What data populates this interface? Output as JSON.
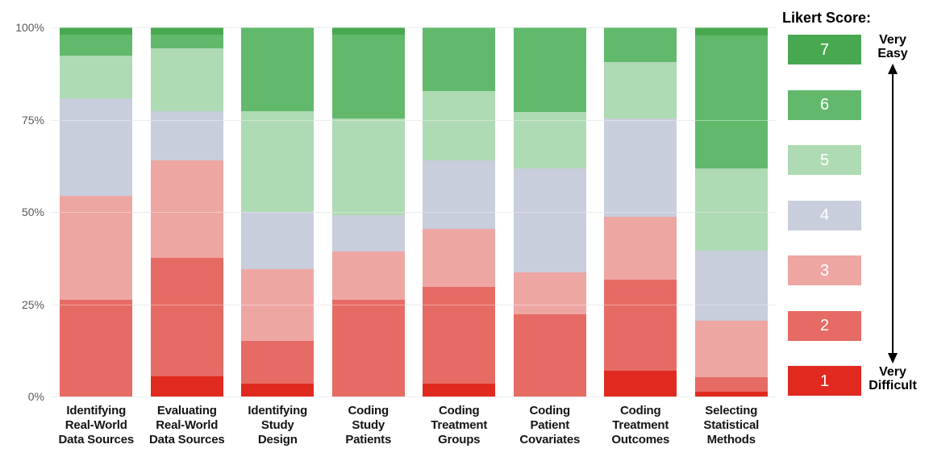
{
  "legend": {
    "title": "Likert Score:",
    "top_label_lines": [
      "Very",
      "Easy"
    ],
    "bottom_label_lines": [
      "Very",
      "Difficult"
    ]
  },
  "chart_data": {
    "type": "bar",
    "stacked": true,
    "unit": "percent of respondents",
    "orientation": "vertical",
    "grid": true,
    "legend_position": "right",
    "ylim": [
      0,
      100
    ],
    "yticks": [
      0,
      25,
      50,
      75,
      100
    ],
    "ytick_labels": [
      "0%",
      "25%",
      "50%",
      "75%",
      "100%"
    ],
    "categories": [
      "Identifying Real-World Data Sources",
      "Evaluating Real-World Data Sources",
      "Identifying Study Design",
      "Coding Study Patients",
      "Coding Treatment Groups",
      "Coding Patient Covariates",
      "Coding Treatment Outcomes",
      "Selecting Statistical Methods"
    ],
    "category_label_lines": [
      [
        "Identifying",
        "Real-World",
        "Data Sources"
      ],
      [
        "Evaluating",
        "Real-World",
        "Data Sources"
      ],
      [
        "Identifying",
        "Study",
        "Design"
      ],
      [
        "Coding",
        "Study",
        "Patients"
      ],
      [
        "Coding",
        "Treatment",
        "Groups"
      ],
      [
        "Coding",
        "Patient",
        "Covariates"
      ],
      [
        "Coding",
        "Treatment",
        "Outcomes"
      ],
      [
        "Selecting",
        "Statistical",
        "Methods"
      ]
    ],
    "series": [
      {
        "name": "1",
        "label": "Very Difficult",
        "color": "#e02a1f",
        "values": [
          0,
          5.5,
          3.4,
          0,
          3.4,
          0,
          7.0,
          1.4
        ]
      },
      {
        "name": "2",
        "label": "2",
        "color": "#e56b64",
        "values": [
          26.1,
          32.0,
          11.6,
          26.1,
          26.4,
          22.3,
          24.6,
          3.8
        ]
      },
      {
        "name": "3",
        "label": "3",
        "color": "#eea6a3",
        "values": [
          28.3,
          26.5,
          19.5,
          13.3,
          15.6,
          11.3,
          17.0,
          15.4
        ]
      },
      {
        "name": "4",
        "label": "4",
        "color": "#c8cedb",
        "values": [
          26.5,
          13.3,
          15.4,
          9.8,
          18.5,
          28.3,
          26.8,
          19.0
        ]
      },
      {
        "name": "5",
        "label": "5",
        "color": "#aedab4",
        "values": [
          11.4,
          17.0,
          27.4,
          26.2,
          18.9,
          15.1,
          15.2,
          22.3
        ]
      },
      {
        "name": "6",
        "label": "6",
        "color": "#62b96c",
        "values": [
          5.7,
          3.7,
          22.7,
          22.7,
          17.2,
          23.0,
          9.4,
          36.0
        ]
      },
      {
        "name": "7",
        "label": "Very Easy",
        "color": "#48a850",
        "values": [
          2.0,
          2.0,
          0,
          1.9,
          0,
          0,
          0,
          2.1
        ]
      }
    ]
  }
}
